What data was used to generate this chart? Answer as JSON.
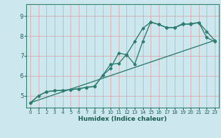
{
  "xlabel": "Humidex (Indice chaleur)",
  "bg_color": "#cce8ee",
  "grid_color": "#b8d4da",
  "line_color": "#2e7d6e",
  "xlim": [
    -0.5,
    23.5
  ],
  "ylim": [
    4.4,
    9.6
  ],
  "yticks": [
    5,
    6,
    7,
    8,
    9
  ],
  "xticks": [
    0,
    1,
    2,
    3,
    4,
    5,
    6,
    7,
    8,
    9,
    10,
    11,
    12,
    13,
    14,
    15,
    16,
    17,
    18,
    19,
    20,
    21,
    22,
    23
  ],
  "series1_x": [
    0,
    1,
    2,
    3,
    4,
    5,
    6,
    7,
    8,
    9,
    10,
    11,
    12,
    13,
    14,
    15,
    16,
    17,
    18,
    19,
    20,
    21,
    22,
    23
  ],
  "series1_y": [
    4.65,
    5.0,
    5.2,
    5.25,
    5.27,
    5.3,
    5.35,
    5.42,
    5.47,
    6.02,
    6.58,
    6.62,
    7.08,
    7.72,
    8.38,
    8.7,
    8.58,
    8.42,
    8.42,
    8.58,
    8.62,
    8.68,
    7.92,
    7.72
  ],
  "series2_x": [
    0,
    1,
    2,
    3,
    4,
    5,
    6,
    7,
    8,
    9,
    10,
    11,
    12,
    13,
    14,
    15,
    16,
    17,
    18,
    19,
    20,
    21,
    22,
    23
  ],
  "series2_y": [
    4.65,
    5.0,
    5.2,
    5.25,
    5.27,
    5.3,
    5.35,
    5.42,
    5.47,
    6.02,
    6.38,
    7.15,
    7.05,
    6.58,
    7.72,
    8.7,
    8.58,
    8.42,
    8.42,
    8.62,
    8.58,
    8.68,
    8.22,
    7.78
  ],
  "series3_x": [
    0,
    23
  ],
  "series3_y": [
    4.65,
    7.78
  ]
}
